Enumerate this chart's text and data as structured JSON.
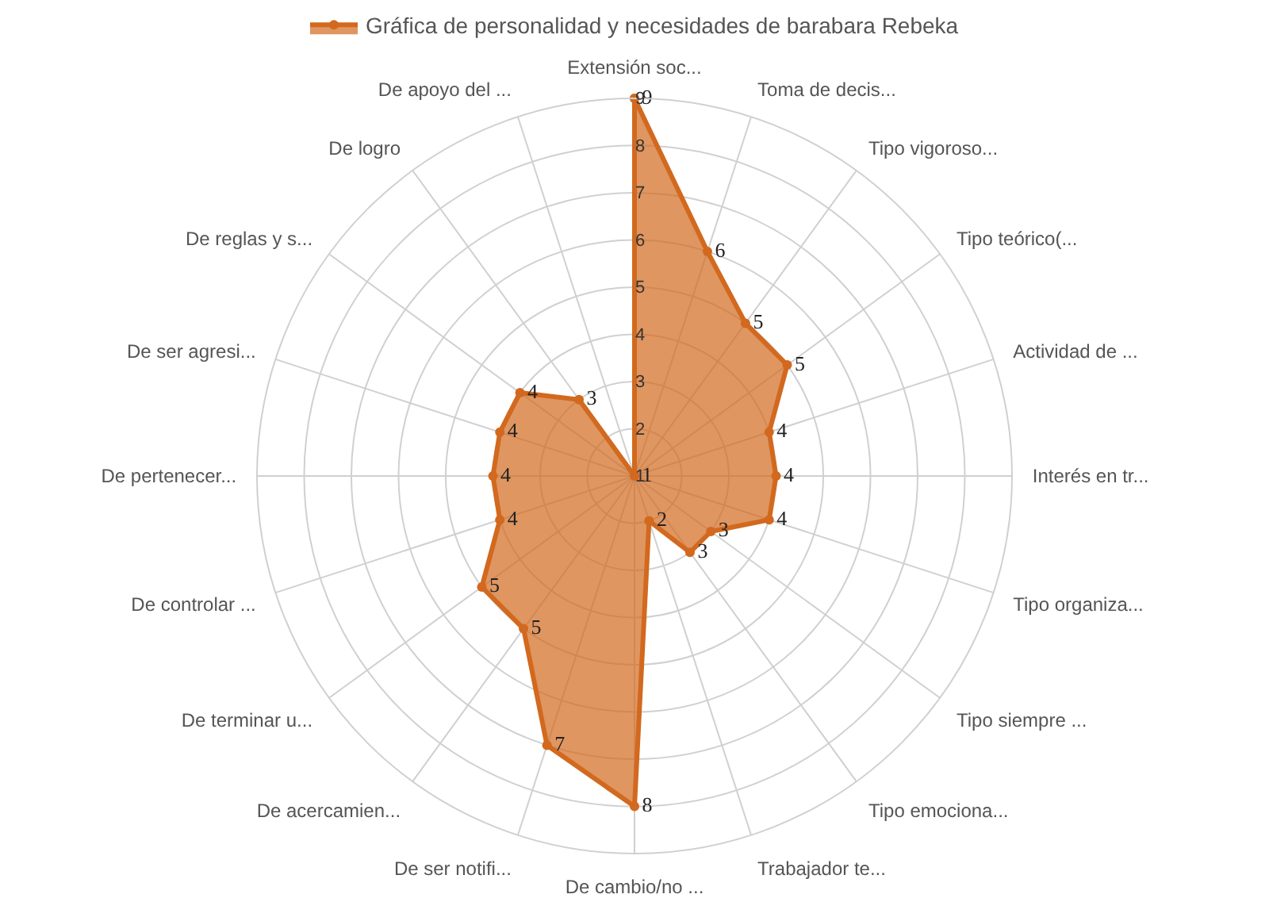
{
  "chart_data": {
    "type": "radar",
    "categories": [
      "Extensión soc...",
      "Toma de decis...",
      "Tipo vigoroso...",
      "Tipo teórico(...",
      "Actividad de ...",
      "Interés en tr...",
      "Tipo organiza...",
      "Tipo siempre ...",
      "Tipo emociona...",
      "Trabajador te...",
      "De cambio/no ...",
      "De ser notifi...",
      "De acercamien...",
      "De terminar u...",
      "De controlar ...",
      "De pertenecer...",
      "De ser agresi...",
      "De reglas y s...",
      "De logro",
      "De apoyo del ..."
    ],
    "series": [
      {
        "name": "Gráfica de personalidad y necesidades de barabara Rebeka",
        "color": "#d2691e",
        "values": [
          9,
          6,
          5,
          5,
          4,
          4,
          4,
          3,
          3,
          2,
          8,
          7,
          5,
          5,
          4,
          4,
          4,
          4,
          3,
          1
        ]
      }
    ],
    "ylim": [
      1,
      9
    ],
    "yticks": [
      1,
      2,
      3,
      4,
      5,
      6,
      7,
      8,
      9
    ],
    "data_labels": true,
    "legend": "top",
    "marker": "circle",
    "grid": true
  }
}
